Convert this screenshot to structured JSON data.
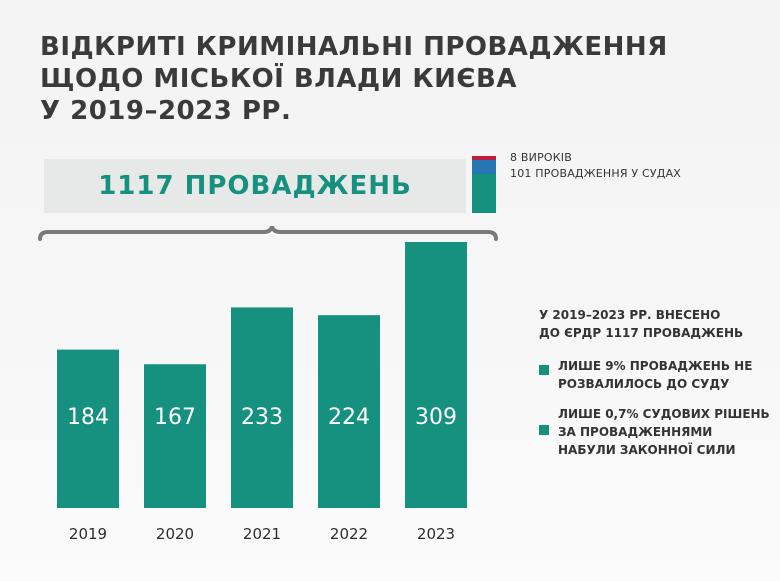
{
  "title": {
    "lines": [
      "ВІДКРИТІ КРИМІНАЛЬНІ ПРОВАДЖЕННЯ",
      "ЩОДО МІСЬКОЇ ВЛАДИ КИЄВА",
      "У 2019–2023 РР."
    ]
  },
  "total": {
    "label": "1117 ПРОВАДЖЕНЬ",
    "value": 1117
  },
  "breakdown": {
    "verdicts_label": "8 ВИРОКІВ",
    "verdicts": 8,
    "in_court_label": "101 ПРОВАДЖЕННЯ У СУДАХ",
    "in_court": 101,
    "colors": {
      "verdicts": "#c01d3e",
      "in_court": "#2776b4",
      "remaining": "#16907f"
    }
  },
  "notes": {
    "heading_lines": [
      "У 2019–2023 РР. ВНЕСЕНО",
      "ДО ЄРДР 1117 ПРОВАДЖЕНЬ"
    ],
    "items": [
      {
        "lines": [
          "ЛИШЕ 9% ПРОВАДЖЕНЬ НЕ",
          "РОЗВАЛИЛОСЬ ДО СУДУ"
        ]
      },
      {
        "lines": [
          "ЛИШЕ 0,7% СУДОВИХ РІШЕНЬ",
          "ЗА ПРОВАДЖЕННЯМИ",
          "НАБУЛИ ЗАКОННОЇ СИЛИ"
        ]
      }
    ]
  },
  "chart_data": {
    "type": "bar",
    "title": "",
    "xlabel": "",
    "ylabel": "",
    "categories": [
      "2019",
      "2020",
      "2021",
      "2022",
      "2023"
    ],
    "values": [
      184,
      167,
      233,
      224,
      309
    ],
    "ylim": [
      0,
      309
    ],
    "grid": false,
    "bar_color": "#16907f"
  }
}
